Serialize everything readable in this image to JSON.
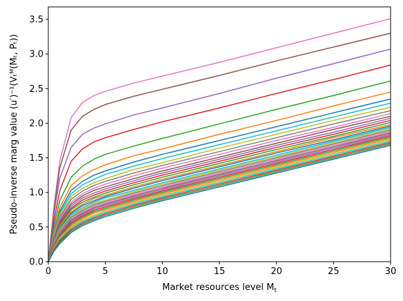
{
  "chart_data": {
    "type": "line",
    "title": "",
    "xlabel": "Market resources level M",
    "xlabel_sub": "t",
    "ylabel": "Pseudo-inverse marg value (u′)⁻¹(Vₜᴹ(Mₜ, Pₜ))",
    "xlim": [
      0,
      30
    ],
    "ylim": [
      0,
      3.68
    ],
    "x_ticks": [
      0,
      5,
      10,
      15,
      20,
      25,
      30
    ],
    "y_ticks": [
      0.0,
      0.5,
      1.0,
      1.5,
      2.0,
      2.5,
      3.0,
      3.5
    ],
    "x_tick_labels": [
      "0",
      "5",
      "10",
      "15",
      "20",
      "25",
      "30"
    ],
    "y_tick_labels": [
      "0.0",
      "0.5",
      "1.0",
      "1.5",
      "2.0",
      "2.5",
      "3.0",
      "3.5"
    ],
    "grid": false,
    "legend": "none",
    "x": [
      0,
      0.5,
      1,
      2,
      3,
      4,
      5,
      7.5,
      10,
      15,
      20,
      25,
      30
    ],
    "series": [
      {
        "color": "#e377c2",
        "values": [
          0.0,
          0.8,
          1.45,
          2.08,
          2.3,
          2.4,
          2.46,
          2.58,
          2.68,
          2.88,
          3.09,
          3.3,
          3.51
        ]
      },
      {
        "color": "#8c564b",
        "values": [
          0.0,
          0.75,
          1.35,
          1.9,
          2.1,
          2.2,
          2.27,
          2.39,
          2.49,
          2.69,
          2.9,
          3.1,
          3.3
        ]
      },
      {
        "color": "#9467bd",
        "values": [
          0.0,
          0.7,
          1.2,
          1.65,
          1.84,
          1.93,
          1.99,
          2.12,
          2.22,
          2.43,
          2.65,
          2.86,
          3.07
        ]
      },
      {
        "color": "#d62728",
        "values": [
          0.0,
          0.6,
          1.02,
          1.45,
          1.63,
          1.73,
          1.79,
          1.91,
          2.02,
          2.22,
          2.43,
          2.63,
          2.84
        ]
      },
      {
        "color": "#2ca02c",
        "values": [
          0.0,
          0.52,
          0.88,
          1.22,
          1.38,
          1.48,
          1.55,
          1.67,
          1.78,
          1.99,
          2.2,
          2.4,
          2.61
        ]
      },
      {
        "color": "#ff7f0e",
        "values": [
          0.0,
          0.46,
          0.78,
          1.1,
          1.24,
          1.33,
          1.4,
          1.53,
          1.63,
          1.84,
          2.04,
          2.25,
          2.45
        ]
      },
      {
        "color": "#1f77b4",
        "values": [
          0.0,
          0.43,
          0.73,
          1.03,
          1.16,
          1.25,
          1.31,
          1.44,
          1.55,
          1.75,
          1.95,
          2.15,
          2.35
        ]
      },
      {
        "color": "#17becf",
        "values": [
          0.0,
          0.41,
          0.7,
          0.98,
          1.11,
          1.19,
          1.26,
          1.38,
          1.49,
          1.69,
          1.89,
          2.09,
          2.29
        ]
      },
      {
        "color": "#bcbd22",
        "values": [
          0.0,
          0.39,
          0.67,
          0.94,
          1.06,
          1.14,
          1.2,
          1.33,
          1.43,
          1.64,
          1.84,
          2.04,
          2.23
        ]
      },
      {
        "color": "#7f7f7f",
        "values": [
          0.0,
          0.37,
          0.64,
          0.9,
          1.02,
          1.1,
          1.16,
          1.28,
          1.39,
          1.59,
          1.79,
          1.99,
          2.18
        ]
      },
      {
        "color": "#e377c2",
        "values": [
          0.0,
          0.36,
          0.62,
          0.86,
          0.98,
          1.06,
          1.12,
          1.24,
          1.35,
          1.55,
          1.75,
          1.94,
          2.14
        ]
      },
      {
        "color": "#8c564b",
        "values": [
          0.0,
          0.34,
          0.59,
          0.83,
          0.95,
          1.03,
          1.08,
          1.2,
          1.31,
          1.51,
          1.71,
          1.91,
          2.1
        ]
      },
      {
        "color": "#9467bd",
        "values": [
          0.0,
          0.33,
          0.57,
          0.8,
          0.92,
          0.99,
          1.05,
          1.17,
          1.28,
          1.48,
          1.68,
          1.87,
          2.07
        ]
      },
      {
        "color": "#d62728",
        "values": [
          0.0,
          0.32,
          0.55,
          0.77,
          0.89,
          0.96,
          1.02,
          1.14,
          1.25,
          1.45,
          1.65,
          1.84,
          2.04
        ]
      },
      {
        "color": "#2ca02c",
        "values": [
          0.0,
          0.31,
          0.53,
          0.75,
          0.86,
          0.93,
          0.99,
          1.11,
          1.22,
          1.42,
          1.62,
          1.81,
          2.01
        ]
      },
      {
        "color": "#ff7f0e",
        "values": [
          0.0,
          0.3,
          0.51,
          0.72,
          0.83,
          0.91,
          0.96,
          1.08,
          1.19,
          1.39,
          1.59,
          1.79,
          1.98
        ]
      },
      {
        "color": "#1f77b4",
        "values": [
          0.0,
          0.29,
          0.49,
          0.7,
          0.81,
          0.88,
          0.94,
          1.06,
          1.17,
          1.37,
          1.57,
          1.76,
          1.96
        ]
      },
      {
        "color": "#17becf",
        "values": [
          0.0,
          0.28,
          0.47,
          0.68,
          0.78,
          0.86,
          0.92,
          1.03,
          1.14,
          1.34,
          1.54,
          1.74,
          1.94
        ]
      },
      {
        "color": "#bcbd22",
        "values": [
          0.0,
          0.27,
          0.46,
          0.66,
          0.76,
          0.84,
          0.89,
          1.01,
          1.12,
          1.32,
          1.52,
          1.72,
          1.92
        ]
      },
      {
        "color": "#7f7f7f",
        "values": [
          0.0,
          0.26,
          0.44,
          0.64,
          0.74,
          0.82,
          0.87,
          0.99,
          1.1,
          1.3,
          1.5,
          1.7,
          1.9
        ]
      },
      {
        "color": "#e377c2",
        "values": [
          0.0,
          0.25,
          0.43,
          0.62,
          0.72,
          0.8,
          0.85,
          0.97,
          1.08,
          1.28,
          1.48,
          1.68,
          1.88
        ]
      },
      {
        "color": "#8c564b",
        "values": [
          0.0,
          0.24,
          0.41,
          0.6,
          0.7,
          0.78,
          0.83,
          0.95,
          1.06,
          1.26,
          1.46,
          1.66,
          1.86
        ]
      },
      {
        "color": "#9467bd",
        "values": [
          0.0,
          0.23,
          0.4,
          0.58,
          0.68,
          0.76,
          0.81,
          0.93,
          1.04,
          1.24,
          1.44,
          1.64,
          1.84
        ]
      },
      {
        "color": "#d62728",
        "values": [
          0.0,
          0.22,
          0.38,
          0.56,
          0.66,
          0.74,
          0.79,
          0.91,
          1.02,
          1.22,
          1.42,
          1.62,
          1.82
        ]
      },
      {
        "color": "#2ca02c",
        "values": [
          0.0,
          0.21,
          0.37,
          0.54,
          0.64,
          0.72,
          0.77,
          0.89,
          1.0,
          1.2,
          1.4,
          1.6,
          1.8
        ]
      },
      {
        "color": "#ff7f0e",
        "values": [
          0.0,
          0.2,
          0.35,
          0.52,
          0.62,
          0.7,
          0.75,
          0.87,
          0.98,
          1.18,
          1.38,
          1.58,
          1.78
        ]
      },
      {
        "color": "#bcbd22",
        "values": [
          0.0,
          0.19,
          0.33,
          0.5,
          0.6,
          0.67,
          0.73,
          0.85,
          0.96,
          1.16,
          1.36,
          1.56,
          1.76
        ]
      },
      {
        "color": "#17becf",
        "values": [
          0.0,
          0.18,
          0.32,
          0.48,
          0.58,
          0.65,
          0.71,
          0.83,
          0.94,
          1.14,
          1.34,
          1.54,
          1.74
        ]
      },
      {
        "color": "#d62728",
        "values": [
          0.0,
          0.17,
          0.3,
          0.46,
          0.56,
          0.63,
          0.69,
          0.81,
          0.92,
          1.12,
          1.32,
          1.52,
          1.72
        ]
      },
      {
        "color": "#2ca02c",
        "values": [
          0.0,
          0.16,
          0.28,
          0.44,
          0.54,
          0.61,
          0.67,
          0.79,
          0.9,
          1.1,
          1.3,
          1.5,
          1.7
        ]
      },
      {
        "color": "#1f77b4",
        "values": [
          0.0,
          0.15,
          0.26,
          0.42,
          0.52,
          0.59,
          0.65,
          0.77,
          0.88,
          1.08,
          1.28,
          1.48,
          1.68
        ]
      }
    ]
  }
}
